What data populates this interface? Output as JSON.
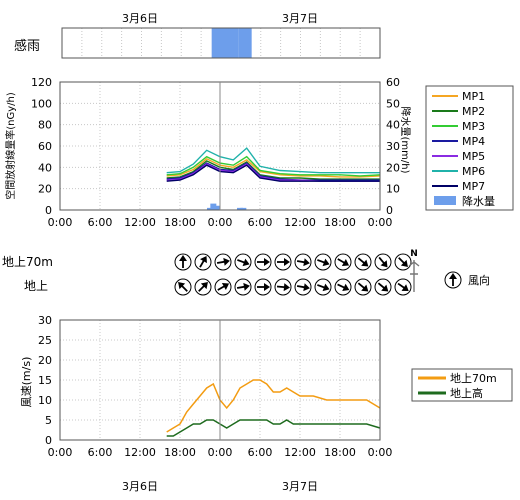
{
  "rain_sense": {
    "label": "感雨",
    "date_top": [
      "3月6日",
      "3月7日"
    ],
    "periods": [
      {
        "start": "3月7日 22:45",
        "end": "3月7日 00:45"
      },
      {
        "start": "3月7日 02:45",
        "end": "3月7日 04:45"
      }
    ],
    "color": "#6d9eeb"
  },
  "dose": {
    "ylabel": "空間放射線量率(nGy/h)",
    "y2label": "降水量(mm/h)",
    "yticks": [
      "0",
      "20",
      "40",
      "60",
      "80",
      "100",
      "120"
    ],
    "y2ticks": [
      "0",
      "10",
      "20",
      "30",
      "40",
      "50",
      "60"
    ],
    "xticks": [
      "0:00",
      "6:00",
      "12:00",
      "18:00",
      "0:00",
      "6:00",
      "12:00",
      "18:00",
      "0:00"
    ],
    "legend": [
      "MP1",
      "MP2",
      "MP3",
      "MP4",
      "MP5",
      "MP6",
      "MP7",
      "降水量"
    ]
  },
  "wind_dir": {
    "row_labels": [
      "地上70m",
      "地上"
    ],
    "north_label": "N",
    "legend_label": "風向",
    "times": [
      "16:00",
      "18:00",
      "20:00",
      "22:00",
      "0:00",
      "2:00",
      "4:00",
      "6:00",
      "8:00",
      "10:00",
      "12:00",
      "14:00"
    ],
    "upper_deg": [
      0,
      30,
      80,
      110,
      90,
      90,
      100,
      110,
      120,
      130,
      140,
      135
    ],
    "lower_deg": [
      315,
      45,
      60,
      80,
      90,
      95,
      100,
      110,
      115,
      130,
      130,
      125
    ]
  },
  "wind": {
    "ylabel": "風速(m/s)",
    "yticks": [
      "0",
      "5",
      "10",
      "15",
      "20",
      "25",
      "30"
    ],
    "xticks": [
      "0:00",
      "6:00",
      "12:00",
      "18:00",
      "0:00",
      "6:00",
      "12:00",
      "18:00",
      "0:00"
    ],
    "legend": [
      "地上70m",
      "地上高"
    ],
    "date_bottom": [
      "3月6日",
      "3月7日"
    ]
  },
  "chart_data": [
    {
      "type": "line",
      "title": "",
      "xlabel": "",
      "ylabel": "空間放射線量率(nGy/h)",
      "y2label": "降水量(mm/h)",
      "ylim": [
        0,
        120
      ],
      "y2lim": [
        0,
        60
      ],
      "x": [
        "3月6日 16:00",
        "3月6日 18:00",
        "3月6日 20:00",
        "3月6日 22:00",
        "3月7日 0:00",
        "3月7日 2:00",
        "3月7日 4:00",
        "3月7日 6:00",
        "3月7日 9:00",
        "3月7日 12:00",
        "3月7日 15:00",
        "3月7日 18:00",
        "3月7日 21:00",
        "3月8日 0:00"
      ],
      "series": [
        {
          "name": "MP1",
          "color": "#f5a623",
          "values": [
            32,
            33,
            38,
            48,
            42,
            40,
            47,
            36,
            33,
            32,
            32,
            31,
            31,
            32
          ]
        },
        {
          "name": "MP2",
          "color": "#1a7a1a",
          "values": [
            30,
            31,
            36,
            46,
            40,
            38,
            45,
            33,
            30,
            30,
            29,
            29,
            29,
            29
          ]
        },
        {
          "name": "MP3",
          "color": "#33cc33",
          "values": [
            33,
            34,
            40,
            50,
            44,
            42,
            50,
            37,
            34,
            33,
            33,
            33,
            32,
            33
          ]
        },
        {
          "name": "MP4",
          "color": "#1a1aa0",
          "values": [
            29,
            30,
            35,
            44,
            38,
            37,
            44,
            32,
            29,
            28,
            28,
            28,
            28,
            28
          ]
        },
        {
          "name": "MP5",
          "color": "#8a2be2",
          "values": [
            28,
            29,
            34,
            43,
            37,
            36,
            43,
            31,
            28,
            28,
            27,
            27,
            27,
            27
          ]
        },
        {
          "name": "MP6",
          "color": "#20b2aa",
          "values": [
            35,
            36,
            43,
            56,
            50,
            47,
            58,
            41,
            37,
            36,
            35,
            35,
            35,
            35
          ]
        },
        {
          "name": "MP7",
          "color": "#000066",
          "values": [
            27,
            28,
            33,
            42,
            36,
            35,
            42,
            30,
            27,
            27,
            27,
            27,
            27,
            27
          ]
        },
        {
          "name": "降水量",
          "type": "bar",
          "axis": "right",
          "color": "#6d9eeb",
          "x": [
            "3月6日 22:30",
            "3月6日 23:00",
            "3月6日 23:30",
            "3月7日 3:00",
            "3月7日 3:30"
          ],
          "values": [
            1,
            3,
            2,
            1,
            1
          ]
        }
      ]
    },
    {
      "type": "line",
      "title": "",
      "xlabel": "",
      "ylabel": "風速(m/s)",
      "ylim": [
        0,
        30
      ],
      "x": [
        "3月6日 16:00",
        "3月6日 17:00",
        "3月6日 18:00",
        "3月6日 19:00",
        "3月6日 20:00",
        "3月6日 21:00",
        "3月6日 22:00",
        "3月6日 23:00",
        "3月7日 0:00",
        "3月7日 1:00",
        "3月7日 2:00",
        "3月7日 3:00",
        "3月7日 4:00",
        "3月7日 5:00",
        "3月7日 6:00",
        "3月7日 7:00",
        "3月7日 8:00",
        "3月7日 9:00",
        "3月7日 10:00",
        "3月7日 11:00",
        "3月7日 12:00",
        "3月7日 14:00",
        "3月7日 16:00",
        "3月7日 18:00",
        "3月7日 20:00",
        "3月7日 22:00",
        "3月8日 0:00"
      ],
      "series": [
        {
          "name": "地上70m",
          "color": "#f39c12",
          "values": [
            2,
            3,
            4,
            7,
            9,
            11,
            13,
            14,
            10,
            8,
            10,
            13,
            14,
            15,
            15,
            14,
            12,
            12,
            13,
            12,
            11,
            11,
            10,
            10,
            10,
            10,
            8
          ]
        },
        {
          "name": "地上高",
          "color": "#1e6b1e",
          "values": [
            1,
            1,
            2,
            3,
            4,
            4,
            5,
            5,
            4,
            3,
            4,
            5,
            5,
            5,
            5,
            5,
            4,
            4,
            5,
            4,
            4,
            4,
            4,
            4,
            4,
            4,
            3
          ]
        }
      ]
    }
  ]
}
